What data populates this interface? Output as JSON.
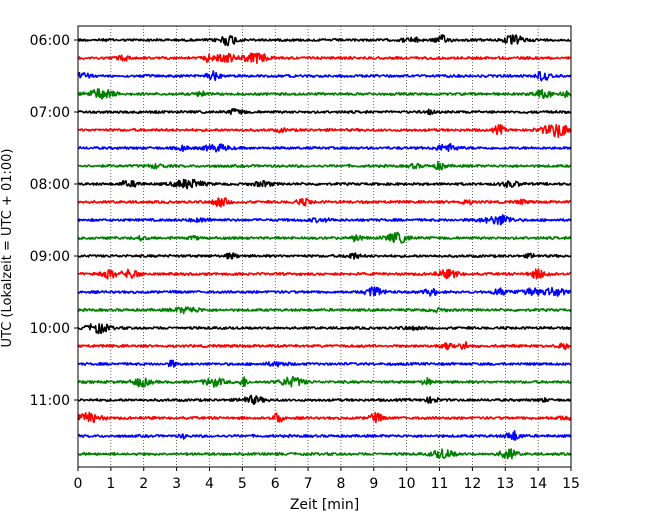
{
  "chart_data": {
    "type": "line",
    "title": "",
    "xlabel": "Zeit  [min]",
    "ylabel": "UTC (Lokalzeit = UTC + 01:00)",
    "xlim": [
      0,
      15
    ],
    "x_ticks": [
      0,
      1,
      2,
      3,
      4,
      5,
      6,
      7,
      8,
      9,
      10,
      11,
      12,
      13,
      14,
      15
    ],
    "x_tick_labels": [
      "0",
      "1",
      "2",
      "3",
      "4",
      "5",
      "6",
      "7",
      "8",
      "9",
      "10",
      "11",
      "12",
      "13",
      "14",
      "15"
    ],
    "y_tick_labels": [
      "06:00",
      "07:00",
      "08:00",
      "09:00",
      "10:00",
      "11:00"
    ],
    "y_tick_rows": [
      0,
      4,
      8,
      12,
      16,
      20
    ],
    "row_interval_min": 15,
    "row_colors": [
      "#000000",
      "#ff0000",
      "#0000ff",
      "#008000"
    ],
    "grid": {
      "x": "dotted",
      "y": "none"
    },
    "series": [
      {
        "start": "06:00",
        "color": "#000000"
      },
      {
        "start": "06:15",
        "color": "#ff0000"
      },
      {
        "start": "06:30",
        "color": "#0000ff"
      },
      {
        "start": "06:45",
        "color": "#008000"
      },
      {
        "start": "07:00",
        "color": "#000000"
      },
      {
        "start": "07:15",
        "color": "#ff0000"
      },
      {
        "start": "07:30",
        "color": "#0000ff"
      },
      {
        "start": "07:45",
        "color": "#008000"
      },
      {
        "start": "08:00",
        "color": "#000000"
      },
      {
        "start": "08:15",
        "color": "#ff0000"
      },
      {
        "start": "08:30",
        "color": "#0000ff"
      },
      {
        "start": "08:45",
        "color": "#008000"
      },
      {
        "start": "09:00",
        "color": "#000000"
      },
      {
        "start": "09:15",
        "color": "#ff0000"
      },
      {
        "start": "09:30",
        "color": "#0000ff"
      },
      {
        "start": "09:45",
        "color": "#008000"
      },
      {
        "start": "10:00",
        "color": "#000000"
      },
      {
        "start": "10:15",
        "color": "#ff0000"
      },
      {
        "start": "10:30",
        "color": "#0000ff"
      },
      {
        "start": "10:45",
        "color": "#008000"
      },
      {
        "start": "11:00",
        "color": "#000000"
      },
      {
        "start": "11:15",
        "color": "#ff0000"
      },
      {
        "start": "11:30",
        "color": "#0000ff"
      },
      {
        "start": "11:45",
        "color": "#008000"
      }
    ]
  }
}
